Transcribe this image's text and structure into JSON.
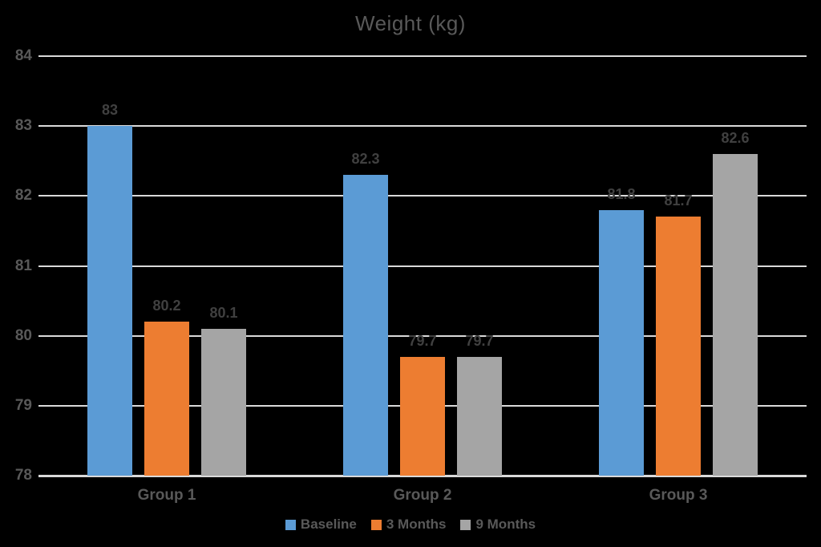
{
  "chart_data": {
    "type": "bar",
    "title": "Weight (kg)",
    "categories": [
      "Group 1",
      "Group 2",
      "Group 3"
    ],
    "series": [
      {
        "name": "Baseline",
        "color": "#5B9BD5",
        "values": [
          83,
          82.3,
          81.8
        ]
      },
      {
        "name": "3 Months",
        "color": "#ED7D31",
        "values": [
          80.2,
          79.7,
          81.7
        ]
      },
      {
        "name": "9 Months",
        "color": "#A5A5A5",
        "values": [
          80.1,
          79.7,
          82.6
        ]
      }
    ],
    "data_labels": [
      [
        "83",
        "82.3",
        "81.8"
      ],
      [
        "80.2",
        "79.7",
        "81.7"
      ],
      [
        "80.1",
        "79.7",
        "82.6"
      ]
    ],
    "ylim": [
      78,
      84
    ],
    "ytick_step": 1,
    "yticks": [
      "84",
      "83",
      "82",
      "81",
      "80",
      "79",
      "78"
    ],
    "xlabel": "",
    "ylabel": "",
    "grid": true,
    "legend_position": "bottom"
  },
  "theme": {
    "background": "#000000",
    "grid_color": "#D9D9D9",
    "axis_text_color": "#595959",
    "data_label_color": "#404040"
  }
}
